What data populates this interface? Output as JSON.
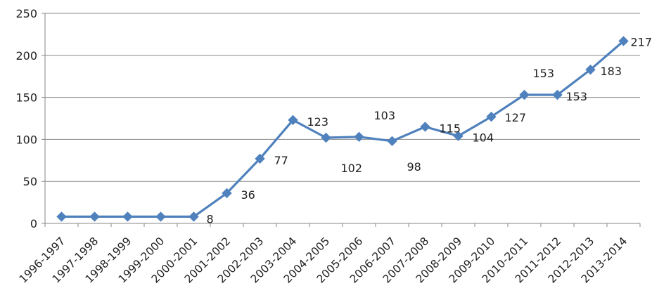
{
  "chart_data": {
    "type": "line",
    "title": "",
    "xlabel": "",
    "ylabel": "",
    "ylim": [
      0,
      250
    ],
    "yticks": [
      0,
      50,
      100,
      150,
      200,
      250
    ],
    "grid": "horizontal",
    "legend": "none",
    "categories": [
      "1996-1997",
      "1997-1998",
      "1998-1999",
      "1999-2000",
      "2000-2001",
      "2001-2002",
      "2002-2003",
      "2003-2004",
      "2004-2005",
      "2005-2006",
      "2006-2007",
      "2007-2008",
      "2008-2009",
      "2009-2010",
      "2010-2011",
      "2011-2012",
      "2012-2013",
      "2013-2014"
    ],
    "series": [
      {
        "color": "#4f81bd",
        "marker": "diamond",
        "values": [
          8,
          8,
          8,
          8,
          8,
          36,
          77,
          123,
          102,
          103,
          98,
          115,
          104,
          127,
          153,
          153,
          183,
          217
        ]
      }
    ],
    "data_labels": [
      {
        "index": 4,
        "text": "8"
      },
      {
        "index": 5,
        "text": "36"
      },
      {
        "index": 6,
        "text": "77"
      },
      {
        "index": 7,
        "text": "123"
      },
      {
        "index": 8,
        "text": "102"
      },
      {
        "index": 9,
        "text": "103"
      },
      {
        "index": 10,
        "text": "98"
      },
      {
        "index": 11,
        "text": "115"
      },
      {
        "index": 12,
        "text": "104"
      },
      {
        "index": 13,
        "text": "127"
      },
      {
        "index": 14,
        "text": "153"
      },
      {
        "index": 15,
        "text": "153"
      },
      {
        "index": 16,
        "text": "183"
      },
      {
        "index": 17,
        "text": "217"
      }
    ]
  }
}
